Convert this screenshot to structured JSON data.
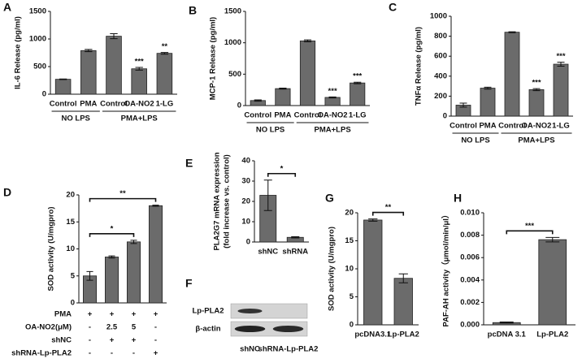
{
  "chart_data": [
    {
      "type": "bar",
      "label": "A",
      "ylabel": "IL-6 Release (pg/ml)",
      "ylim": [
        0,
        1500
      ],
      "yticks": [
        0,
        500,
        1000,
        1500
      ],
      "groups": [
        {
          "label": "NO LPS",
          "categories": [
            "Control",
            "PMA"
          ]
        },
        {
          "label": "PMA+LPS",
          "categories": [
            "Control",
            "OA-NO2",
            "1-LG"
          ]
        }
      ],
      "values": [
        270,
        790,
        1050,
        460,
        740
      ],
      "errors": [
        5,
        20,
        45,
        25,
        15
      ],
      "annotations": [
        null,
        null,
        null,
        "***",
        "**"
      ]
    },
    {
      "type": "bar",
      "label": "B",
      "ylabel": "MCP-1 Release (pg/ml)",
      "ylim": [
        0,
        1500
      ],
      "yticks": [
        0,
        500,
        1000,
        1500
      ],
      "groups": [
        {
          "label": "NO LPS",
          "categories": [
            "Control",
            "PMA"
          ]
        },
        {
          "label": "PMA+LPS",
          "categories": [
            "Control",
            "OA-NO2",
            "1-LG"
          ]
        }
      ],
      "values": [
        80,
        270,
        1030,
        130,
        360
      ],
      "errors": [
        10,
        8,
        15,
        8,
        12
      ],
      "annotations": [
        null,
        null,
        null,
        "***",
        "***"
      ]
    },
    {
      "type": "bar",
      "label": "C",
      "ylabel": "TNFα Release (pg/ml)",
      "ylim": [
        0,
        1000
      ],
      "yticks": [
        0,
        200,
        400,
        600,
        800,
        1000
      ],
      "groups": [
        {
          "label": "NO LPS",
          "categories": [
            "Control",
            "PMA"
          ]
        },
        {
          "label": "PMA+LPS",
          "categories": [
            "Control",
            "OA-NO2",
            "1-LG"
          ]
        }
      ],
      "values": [
        110,
        280,
        840,
        265,
        520
      ],
      "errors": [
        20,
        10,
        5,
        10,
        20
      ],
      "annotations": [
        null,
        null,
        null,
        "***",
        "***"
      ]
    },
    {
      "type": "bar",
      "label": "D",
      "ylabel": "SOD activity (U/mgpro)",
      "ylim": [
        0,
        20
      ],
      "yticks": [
        0,
        5,
        10,
        15,
        20
      ],
      "values": [
        5,
        8.5,
        11.3,
        18
      ],
      "errors": [
        0.8,
        0.2,
        0.3,
        0.1
      ],
      "conditions": [
        {
          "label": "PMA",
          "marks": [
            "+",
            "+",
            "+",
            "+"
          ]
        },
        {
          "label": "OA-NO2(μM)",
          "marks": [
            "-",
            "2.5",
            "5",
            "-"
          ]
        },
        {
          "label": "shNC",
          "marks": [
            "-",
            "+",
            "+",
            "-"
          ]
        },
        {
          "label": "shRNA-Lp-PLA2",
          "marks": [
            "-",
            "-",
            "-",
            "+"
          ]
        }
      ],
      "brackets": [
        {
          "label": "**",
          "bars": [
            0,
            3
          ]
        },
        {
          "label": "*",
          "bars": [
            0,
            2
          ]
        }
      ]
    },
    {
      "type": "bar",
      "label": "E",
      "ylabel": [
        "PLA2G7 mRNA expression",
        "(fold increase vs. control)"
      ],
      "ylim": [
        0,
        40
      ],
      "yticks": [
        0,
        10,
        20,
        30,
        40
      ],
      "categories": [
        "shNC",
        "shRNA"
      ],
      "values": [
        23,
        2.3
      ],
      "errors": [
        7.5,
        0.3
      ],
      "brackets": [
        {
          "label": "*",
          "bars": [
            0,
            1
          ]
        }
      ]
    },
    {
      "type": "blot",
      "label": "F",
      "rows": [
        "Lp-PLA2",
        "β-actin"
      ],
      "lanes": [
        "shNC",
        "shRNA-Lp-PLA2"
      ]
    },
    {
      "type": "bar",
      "label": "G",
      "ylabel": "SOD activity (U/mgpro)",
      "ylim": [
        0,
        20
      ],
      "yticks": [
        0,
        5,
        10,
        15,
        20
      ],
      "categories": [
        "pcDNA3.1",
        "Lp-PLA2"
      ],
      "values": [
        18.7,
        8.3
      ],
      "errors": [
        0.2,
        0.8
      ],
      "brackets": [
        {
          "label": "**",
          "bars": [
            0,
            1
          ]
        }
      ]
    },
    {
      "type": "bar",
      "label": "H",
      "ylabel": "PAF-AH activity（μmol/min/μl）",
      "ylim": [
        0,
        0.01
      ],
      "yticks": [
        {
          "value": 0,
          "label": "0.000"
        },
        {
          "value": 0.002,
          "label": "0.002"
        },
        {
          "value": 0.004,
          "label": "0.004"
        },
        {
          "value": 0.006,
          "label": "0.006"
        },
        {
          "value": 0.008,
          "label": "0.008"
        },
        {
          "value": 0.01,
          "label": "0.010"
        }
      ],
      "categories": [
        "pcDNA 3.1",
        "Lp-PLA2"
      ],
      "values": [
        0.0002,
        0.0076
      ],
      "errors": [
        5e-05,
        0.0002
      ],
      "brackets": [
        {
          "label": "***",
          "bars": [
            0,
            1
          ]
        }
      ]
    }
  ]
}
